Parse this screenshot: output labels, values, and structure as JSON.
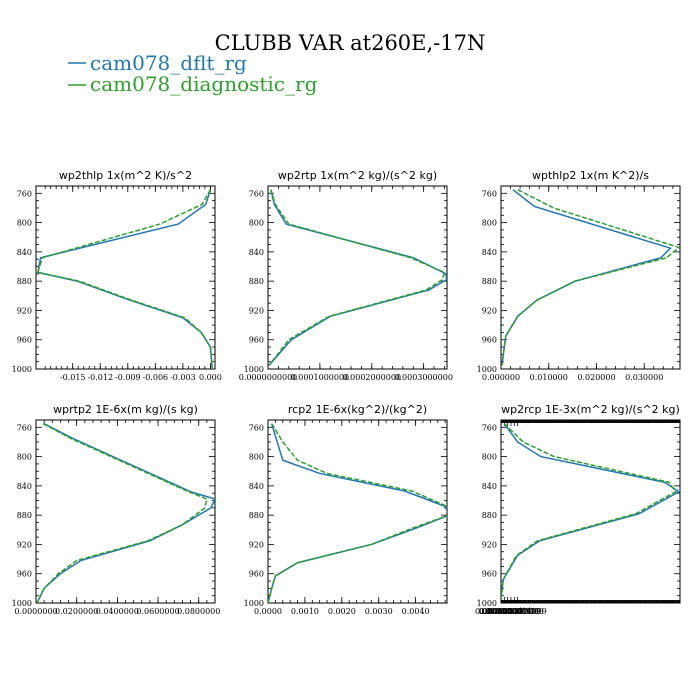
{
  "title": "CLUBB VAR at260E,-17N",
  "legend": [
    {
      "label": "cam078_dflt_rg",
      "color": "#1f77b4"
    },
    {
      "label": "cam078_diagnostic_rg",
      "color": "#2ca02c"
    }
  ],
  "chart_data": [
    {
      "type": "line",
      "title": "wp2thlp   1x(m^2 K)/s^2",
      "xlim": [
        -0.019,
        0.0005
      ],
      "ylim": [
        1000,
        750
      ],
      "ytick_labels": [
        "760",
        "800",
        "840",
        "880",
        "920",
        "960",
        "1000"
      ],
      "xtick_labels": [
        "-0.015",
        "-0.012",
        "-0.009",
        "-0.006",
        "-0.003",
        "0.000"
      ],
      "series": [
        {
          "name": "cam078_dflt_rg",
          "color": "#1f77b4",
          "x": [
            0.0,
            -0.0005,
            -0.0035,
            -0.0185,
            -0.0188,
            -0.0145,
            -0.009,
            -0.003,
            -0.001,
            0.0,
            0.0002
          ],
          "y": [
            755,
            775,
            802,
            848,
            868,
            880,
            905,
            930,
            950,
            970,
            1000
          ]
        },
        {
          "name": "cam078_diagnostic_rg",
          "color": "#2ca02c",
          "x": [
            0.0,
            -0.0009,
            -0.0055,
            -0.0183,
            -0.0188,
            -0.0143,
            -0.0088,
            -0.0028,
            -0.001,
            0.0,
            0.0002
          ],
          "y": [
            755,
            775,
            802,
            848,
            868,
            880,
            905,
            930,
            950,
            970,
            1000
          ]
        }
      ]
    },
    {
      "type": "line",
      "title": "wp2rtp   1x(m^2 kg)/(s^2 kg)",
      "xlim": [
        0,
        0.000345
      ],
      "ylim": [
        1000,
        750
      ],
      "ytick_labels": [
        "760",
        "800",
        "840",
        "880",
        "920",
        "960",
        "1000"
      ],
      "xtick_labels": [
        "0.0000000000",
        "0.0001000000",
        "0.0002000000",
        "0.0003000000"
      ],
      "series": [
        {
          "name": "cam078_dflt_rg",
          "color": "#1f77b4",
          "x": [
            5.5e-06,
            1.2e-05,
            3.5e-05,
            0.00028,
            0.000343,
            0.000344,
            0.00031,
            0.00012,
            4.5e-05,
            2e-06
          ],
          "y": [
            755,
            775,
            802,
            848,
            870,
            878,
            892,
            928,
            960,
            995
          ]
        },
        {
          "name": "cam078_diagnostic_rg",
          "color": "#2ca02c",
          "x": [
            5.5e-06,
            1.4e-05,
            4e-05,
            0.000275,
            0.00034,
            0.000336,
            0.000305,
            0.000118,
            4e-05,
            2e-06
          ],
          "y": [
            755,
            775,
            802,
            848,
            868,
            878,
            892,
            928,
            960,
            995
          ]
        }
      ]
    },
    {
      "type": "line",
      "title": "wpthlp2   1x(m K^2)/s",
      "xlim": [
        0,
        0.0375
      ],
      "ylim": [
        1000,
        750
      ],
      "ytick_labels": [
        "760",
        "800",
        "840",
        "880",
        "920",
        "960",
        "1000"
      ],
      "xtick_labels": [
        "0.000000",
        "0.010000",
        "0.020000",
        "0.030000"
      ],
      "series": [
        {
          "name": "cam078_dflt_rg",
          "color": "#1f77b4",
          "x": [
            0.0025,
            0.007,
            0.0355,
            0.0335,
            0.0155,
            0.0075,
            0.0035,
            0.001,
            0.0002
          ],
          "y": [
            755,
            778,
            835,
            848,
            880,
            906,
            928,
            955,
            995
          ]
        },
        {
          "name": "cam078_diagnostic_rg",
          "color": "#2ca02c",
          "x": [
            0.0035,
            0.011,
            0.0373,
            0.0347,
            0.0155,
            0.0075,
            0.0035,
            0.001,
            0.0002
          ],
          "y": [
            755,
            780,
            834,
            848,
            880,
            906,
            928,
            955,
            995
          ]
        }
      ]
    },
    {
      "type": "line",
      "title": "wprtp2   1E-6x(m kg)/(s kg)",
      "xlim": [
        0,
        0.088
      ],
      "ylim": [
        1000,
        750
      ],
      "ytick_labels": [
        "760",
        "800",
        "840",
        "880",
        "920",
        "960",
        "1000"
      ],
      "xtick_labels": [
        "0.0000000",
        "0.0200000",
        "0.0400000",
        "0.0600000",
        "0.0800000"
      ],
      "series": [
        {
          "name": "cam078_dflt_rg",
          "color": "#1f77b4",
          "x": [
            0.004,
            0.018,
            0.076,
            0.088,
            0.086,
            0.072,
            0.056,
            0.022,
            0.012,
            0.004,
            0.0005
          ],
          "y": [
            755,
            775,
            848,
            858,
            870,
            893,
            915,
            942,
            960,
            980,
            1000
          ]
        },
        {
          "name": "cam078_diagnostic_rg",
          "color": "#2ca02c",
          "x": [
            0.0035,
            0.017,
            0.075,
            0.084,
            0.083,
            0.072,
            0.055,
            0.02,
            0.011,
            0.004,
            0.0005
          ],
          "y": [
            755,
            775,
            848,
            858,
            870,
            893,
            915,
            942,
            960,
            980,
            1000
          ]
        }
      ]
    },
    {
      "type": "line",
      "title": "rcp2   1E-6x(kg^2)/(kg^2)",
      "xlim": [
        0,
        0.00485
      ],
      "ylim": [
        1000,
        750
      ],
      "ytick_labels": [
        "760",
        "800",
        "840",
        "880",
        "920",
        "960",
        "1000"
      ],
      "xtick_labels": [
        "0.0000",
        "0.0010",
        "0.0020",
        "0.0030",
        "0.0040"
      ],
      "series": [
        {
          "name": "cam078_dflt_rg",
          "color": "#1f77b4",
          "x": [
            0.0001,
            0.00025,
            0.0004,
            0.0014,
            0.0037,
            0.0048,
            0.0049,
            0.004,
            0.0028,
            0.0008,
            0.0002,
            0.0001,
            0.0
          ],
          "y": [
            755,
            780,
            805,
            823,
            847,
            868,
            880,
            898,
            920,
            945,
            963,
            980,
            1000
          ]
        },
        {
          "name": "cam078_diagnostic_rg",
          "color": "#2ca02c",
          "x": [
            0.0001,
            0.0004,
            0.0008,
            0.0016,
            0.0039,
            0.00485,
            0.0049,
            0.0039,
            0.0028,
            0.0008,
            0.0002,
            0.0001,
            0.0
          ],
          "y": [
            755,
            780,
            805,
            823,
            847,
            868,
            880,
            898,
            920,
            945,
            963,
            980,
            1000
          ]
        }
      ]
    },
    {
      "type": "line",
      "title": "wp2rcp   1E-3x(m^2 kg)/(s^2 kg)",
      "xlim": [
        0,
        1.62e-05
      ],
      "ylim": [
        1000,
        750
      ],
      "ytick_labels": [
        "760",
        "800",
        "840",
        "880",
        "920",
        "960",
        "1000"
      ],
      "xtick_labels": [
        "0.0000000",
        "0.0000003000",
        "0.0000006000",
        "0.0000008999",
        "0.0000012000",
        "0.0000014999"
      ],
      "series": [
        {
          "name": "cam078_dflt_rg",
          "color": "#1f77b4",
          "x": [
            3e-07,
            1.5e-06,
            3.6e-06,
            1.48e-05,
            1.61e-05,
            1.25e-05,
            3.5e-06,
            1.5e-06,
            2e-07,
            0.0
          ],
          "y": [
            755,
            780,
            800,
            835,
            848,
            878,
            915,
            935,
            968,
            995
          ]
        },
        {
          "name": "cam078_diagnostic_rg",
          "color": "#2ca02c",
          "x": [
            3e-07,
            2e-06,
            4.8e-06,
            1.52e-05,
            1.58e-05,
            1.22e-05,
            3.3e-06,
            1.4e-06,
            2e-07,
            0.0
          ],
          "y": [
            755,
            780,
            800,
            835,
            848,
            878,
            915,
            935,
            968,
            995
          ]
        }
      ]
    }
  ]
}
